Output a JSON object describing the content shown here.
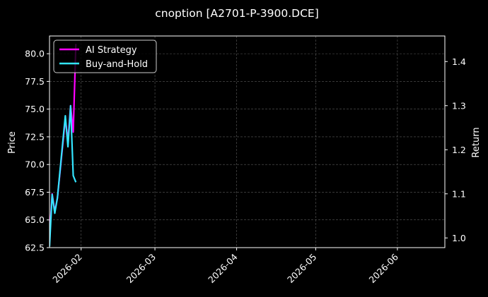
{
  "chart_data": {
    "type": "line",
    "title": "cnoption [A2701-P-3900.DCE]",
    "background": "#000000",
    "grid": true,
    "legend_placement": "top-left",
    "x_axis": {
      "type": "date",
      "range": [
        "2026-01-20",
        "2026-06-19"
      ],
      "ticks": [
        {
          "date": "2026-02-01",
          "label": "2026-02"
        },
        {
          "date": "2026-03-01",
          "label": "2026-03"
        },
        {
          "date": "2026-04-01",
          "label": "2026-04"
        },
        {
          "date": "2026-05-01",
          "label": "2026-05"
        },
        {
          "date": "2026-06-01",
          "label": "2026-06"
        }
      ]
    },
    "y_left": {
      "label": "Price",
      "range": [
        62.5,
        81.6
      ],
      "ticks": [
        "62.5",
        "65.0",
        "67.5",
        "70.0",
        "72.5",
        "75.0",
        "77.5",
        "80.0"
      ]
    },
    "y_right": {
      "label": "Return",
      "range": [
        0.978,
        1.458
      ],
      "ticks": [
        "1.0",
        "1.1",
        "1.2",
        "1.3",
        "1.4"
      ]
    },
    "series": [
      {
        "name": "AI Strategy",
        "axis": "right",
        "color": "#ff00ff",
        "points": [
          {
            "x": "2026-01-20",
            "y": 1.0
          },
          {
            "x": "2026-01-21",
            "y": 1.1
          },
          {
            "x": "2026-01-22",
            "y": 1.06
          },
          {
            "x": "2026-01-23",
            "y": 1.09
          },
          {
            "x": "2026-01-26",
            "y": 1.27
          },
          {
            "x": "2026-01-27",
            "y": 1.22
          },
          {
            "x": "2026-01-28",
            "y": 1.3
          },
          {
            "x": "2026-01-29",
            "y": 1.24
          },
          {
            "x": "2026-01-30",
            "y": 1.44
          }
        ]
      },
      {
        "name": "Buy-and-Hold",
        "axis": "left",
        "color": "#33e5ff",
        "points": [
          {
            "x": "2026-01-20",
            "y": 62.6
          },
          {
            "x": "2026-01-21",
            "y": 67.3
          },
          {
            "x": "2026-01-22",
            "y": 65.6
          },
          {
            "x": "2026-01-23",
            "y": 67.0
          },
          {
            "x": "2026-01-26",
            "y": 74.4
          },
          {
            "x": "2026-01-27",
            "y": 71.6
          },
          {
            "x": "2026-01-28",
            "y": 75.3
          },
          {
            "x": "2026-01-29",
            "y": 69.0
          },
          {
            "x": "2026-01-30",
            "y": 68.4
          }
        ]
      }
    ]
  }
}
